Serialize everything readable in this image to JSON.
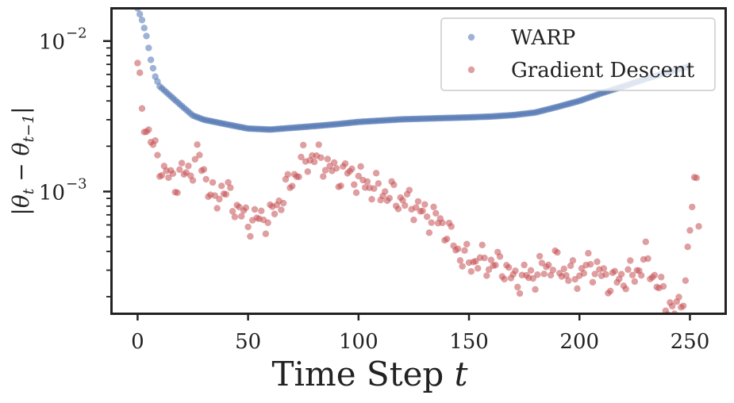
{
  "chart_data": {
    "type": "scatter",
    "xlabel": "Time Step t",
    "ylabel": "|θt − θt−1|",
    "xlim": [
      -12,
      266
    ],
    "ylim": [
      0.000155,
      0.0166
    ],
    "yscale": "log",
    "x_ticks": [
      0,
      50,
      100,
      150,
      200,
      250
    ],
    "x_tick_labels": [
      "0",
      "50",
      "100",
      "150",
      "200",
      "250"
    ],
    "y_major_ticks": [
      {
        "value": 0.01,
        "base": "10",
        "exp": "−2"
      },
      {
        "value": 0.001,
        "base": "10",
        "exp": "−3"
      }
    ],
    "y_minor_ticks": [
      0.0002,
      0.0003,
      0.0004,
      0.0005,
      0.0006,
      0.0007,
      0.0008,
      0.0009,
      0.002,
      0.003,
      0.004,
      0.005,
      0.006,
      0.007,
      0.008,
      0.009
    ],
    "legend_position": "top-right",
    "series": [
      {
        "name": "WARP",
        "color": "#4c72b0",
        "control_points": [
          [
            0,
            0.0165
          ],
          [
            2,
            0.0138
          ],
          [
            4,
            0.0108
          ],
          [
            6,
            0.0075
          ],
          [
            8,
            0.0058
          ],
          [
            10,
            0.005
          ],
          [
            15,
            0.0043
          ],
          [
            20,
            0.0037
          ],
          [
            25,
            0.0032
          ],
          [
            30,
            0.003
          ],
          [
            40,
            0.0028
          ],
          [
            50,
            0.00262
          ],
          [
            60,
            0.00258
          ],
          [
            70,
            0.00265
          ],
          [
            80,
            0.00272
          ],
          [
            90,
            0.0028
          ],
          [
            100,
            0.0029
          ],
          [
            110,
            0.00296
          ],
          [
            120,
            0.00302
          ],
          [
            130,
            0.00305
          ],
          [
            140,
            0.00308
          ],
          [
            150,
            0.00311
          ],
          [
            160,
            0.00315
          ],
          [
            170,
            0.00322
          ],
          [
            180,
            0.00335
          ],
          [
            190,
            0.00365
          ],
          [
            200,
            0.004
          ],
          [
            210,
            0.0045
          ],
          [
            220,
            0.005
          ],
          [
            230,
            0.0056
          ],
          [
            240,
            0.0062
          ],
          [
            250,
            0.0068
          ]
        ]
      },
      {
        "name": "Gradient Descent",
        "color": "#c44e52",
        "control_points": [
          [
            0,
            0.0064
          ],
          [
            1,
            0.0049
          ],
          [
            2,
            0.0037
          ],
          [
            4,
            0.0026
          ],
          [
            6,
            0.0022
          ],
          [
            8,
            0.0018
          ],
          [
            10,
            0.0016
          ],
          [
            12,
            0.0013
          ],
          [
            15,
            0.00125
          ],
          [
            18,
            0.00118
          ],
          [
            20,
            0.0013
          ],
          [
            25,
            0.00145
          ],
          [
            28,
            0.0017
          ],
          [
            30,
            0.0014
          ],
          [
            33,
            0.00095
          ],
          [
            35,
            0.00085
          ],
          [
            38,
            0.00105
          ],
          [
            40,
            0.001
          ],
          [
            45,
            0.00078
          ],
          [
            48,
            0.00068
          ],
          [
            50,
            0.00064
          ],
          [
            55,
            0.00066
          ],
          [
            60,
            0.00067
          ],
          [
            63,
            0.0008
          ],
          [
            66,
            0.00095
          ],
          [
            70,
            0.0012
          ],
          [
            75,
            0.0016
          ],
          [
            80,
            0.0017
          ],
          [
            85,
            0.00155
          ],
          [
            90,
            0.0013
          ],
          [
            95,
            0.00135
          ],
          [
            100,
            0.0012
          ],
          [
            105,
            0.0011
          ],
          [
            110,
            0.001
          ],
          [
            115,
            0.00095
          ],
          [
            120,
            0.00087
          ],
          [
            125,
            0.00082
          ],
          [
            130,
            0.0007
          ],
          [
            135,
            0.00066
          ],
          [
            140,
            0.00056
          ],
          [
            145,
            0.0004
          ],
          [
            150,
            0.00034
          ],
          [
            155,
            0.00035
          ],
          [
            160,
            0.00033
          ],
          [
            165,
            0.00033
          ],
          [
            170,
            0.00026
          ],
          [
            175,
            0.00027
          ],
          [
            180,
            0.00028
          ],
          [
            185,
            0.00032
          ],
          [
            190,
            0.00033
          ],
          [
            195,
            0.00028
          ],
          [
            200,
            0.00028
          ],
          [
            205,
            0.00033
          ],
          [
            210,
            0.00028
          ],
          [
            215,
            0.00025
          ],
          [
            220,
            0.00027
          ],
          [
            225,
            0.00028
          ],
          [
            230,
            0.00036
          ],
          [
            235,
            0.00025
          ],
          [
            240,
            0.00018
          ],
          [
            243,
            0.00016
          ],
          [
            245,
            0.00017
          ],
          [
            248,
            0.00025
          ],
          [
            250,
            0.00055
          ],
          [
            252,
            0.0011
          ],
          [
            253,
            0.0013
          ],
          [
            254,
            0.00075
          ]
        ]
      }
    ]
  }
}
